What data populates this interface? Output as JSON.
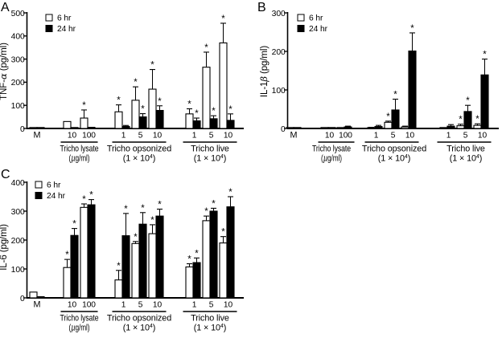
{
  "figure": {
    "background": "#ffffff",
    "bar_fill_6hr": "#ffffff",
    "bar_fill_24hr": "#000000",
    "significance_marker": "*",
    "control_label": "M"
  },
  "chart_data": [
    {
      "type": "bar",
      "panel_letter": "A",
      "ylabel": "TNF-α (pg/ml)",
      "ylim": [
        0,
        500
      ],
      "yticks": [
        0,
        100,
        200,
        300,
        400,
        500
      ],
      "legend": [
        "6 hr",
        "24 hr"
      ],
      "control": {
        "label": "M",
        "values": [
          3,
          3
        ],
        "errors": [
          0,
          0
        ],
        "sig": [
          false,
          false
        ]
      },
      "groups": [
        {
          "name": "Tricho lysate",
          "unit": "(µg/ml)",
          "doses": [
            "10",
            "100"
          ],
          "series": [
            {
              "name": "6 hr",
              "values": [
                30,
                45
              ],
              "errors": [
                0,
                35
              ],
              "sig": [
                false,
                true
              ]
            },
            {
              "name": "24 hr",
              "values": [
                4,
                5
              ],
              "errors": [
                0,
                0
              ],
              "sig": [
                false,
                false
              ]
            }
          ]
        },
        {
          "name": "Tricho opsonized",
          "unit": "(1 × 10⁴)",
          "doses": [
            "1",
            "5",
            "10"
          ],
          "series": [
            {
              "name": "6 hr",
              "values": [
                72,
                122,
                170
              ],
              "errors": [
                30,
                58,
                85
              ],
              "sig": [
                true,
                true,
                true
              ]
            },
            {
              "name": "24 hr",
              "values": [
                9,
                50,
                78
              ],
              "errors": [
                4,
                14,
                20
              ],
              "sig": [
                false,
                true,
                true
              ]
            }
          ]
        },
        {
          "name": "Tricho live",
          "unit": "(1 × 10⁴)",
          "doses": [
            "1",
            "5",
            "10"
          ],
          "series": [
            {
              "name": "6 hr",
              "values": [
                63,
                265,
                370
              ],
              "errors": [
                22,
                65,
                85
              ],
              "sig": [
                true,
                true,
                true
              ]
            },
            {
              "name": "24 hr",
              "values": [
                33,
                42,
                35
              ],
              "errors": [
                12,
                13,
                28
              ],
              "sig": [
                true,
                true,
                true
              ]
            }
          ]
        }
      ]
    },
    {
      "type": "bar",
      "panel_letter": "B",
      "ylabel": "IL-1β (pg/ml)",
      "ylim": [
        0,
        300
      ],
      "yticks": [
        0,
        100,
        200,
        300
      ],
      "legend": [
        "6 hr",
        "24 hr"
      ],
      "control": {
        "label": "M",
        "values": [
          1.5,
          1.5
        ],
        "errors": [
          0,
          0
        ],
        "sig": [
          false,
          false
        ]
      },
      "groups": [
        {
          "name": "Tricho lysate",
          "unit": "(µg/ml)",
          "doses": [
            "10",
            "100"
          ],
          "series": [
            {
              "name": "6 hr",
              "values": [
                1.5,
                1.5
              ],
              "errors": [
                0,
                0
              ],
              "sig": [
                false,
                false
              ]
            },
            {
              "name": "24 hr",
              "values": [
                1.5,
                4
              ],
              "errors": [
                0,
                2
              ],
              "sig": [
                false,
                false
              ]
            }
          ]
        },
        {
          "name": "Tricho opsonized",
          "unit": "(1 × 10⁴)",
          "doses": [
            "1",
            "5",
            "10"
          ],
          "series": [
            {
              "name": "6 hr",
              "values": [
                2,
                16,
                4
              ],
              "errors": [
                1,
                3,
                2
              ],
              "sig": [
                false,
                true,
                false
              ]
            },
            {
              "name": "24 hr",
              "values": [
                5,
                48,
                201
              ],
              "errors": [
                3,
                28,
                47
              ],
              "sig": [
                false,
                true,
                true
              ]
            }
          ]
        },
        {
          "name": "Tricho live",
          "unit": "(1 × 10⁴)",
          "doses": [
            "1",
            "5",
            "10"
          ],
          "series": [
            {
              "name": "6 hr",
              "values": [
                1.5,
                7,
                8
              ],
              "errors": [
                0,
                4,
                4
              ],
              "sig": [
                false,
                true,
                true
              ]
            },
            {
              "name": "24 hr",
              "values": [
                6,
                44,
                139
              ],
              "errors": [
                4,
                16,
                41
              ],
              "sig": [
                false,
                true,
                true
              ]
            }
          ]
        }
      ]
    },
    {
      "type": "bar",
      "panel_letter": "C",
      "ylabel": "IL-6 (pg/ml)",
      "ylim": [
        0,
        400
      ],
      "yticks": [
        0,
        100,
        200,
        300,
        400
      ],
      "legend": [
        "6 hr",
        "24 hr"
      ],
      "control": {
        "label": "M",
        "values": [
          20,
          4
        ],
        "errors": [
          0,
          0
        ],
        "sig": [
          false,
          false
        ]
      },
      "groups": [
        {
          "name": "Tricho lysate",
          "unit": "(µg/ml)",
          "doses": [
            "10",
            "100"
          ],
          "series": [
            {
              "name": "6 hr",
              "values": [
                105,
                313
              ],
              "errors": [
                28,
                12
              ],
              "sig": [
                true,
                true
              ]
            },
            {
              "name": "24 hr",
              "values": [
                216,
                322
              ],
              "errors": [
                24,
                18
              ],
              "sig": [
                true,
                true
              ]
            }
          ]
        },
        {
          "name": "Tricho opsonized",
          "unit": "(1 × 10⁴)",
          "doses": [
            "1",
            "5",
            "10"
          ],
          "series": [
            {
              "name": "6 hr",
              "values": [
                62,
                188,
                222
              ],
              "errors": [
                33,
                7,
                31
              ],
              "sig": [
                true,
                true,
                true
              ]
            },
            {
              "name": "24 hr",
              "values": [
                215,
                255,
                283
              ],
              "errors": [
                77,
                40,
                24
              ],
              "sig": [
                true,
                true,
                true
              ]
            }
          ]
        },
        {
          "name": "Tricho live",
          "unit": "(1 × 10⁴)",
          "doses": [
            "1",
            "5",
            "10"
          ],
          "series": [
            {
              "name": "6 hr",
              "values": [
                107,
                267,
                190
              ],
              "errors": [
                11,
                16,
                22
              ],
              "sig": [
                true,
                true,
                true
              ]
            },
            {
              "name": "24 hr",
              "values": [
                122,
                300,
                315
              ],
              "errors": [
                16,
                10,
                35
              ],
              "sig": [
                true,
                true,
                true
              ]
            }
          ]
        }
      ]
    }
  ]
}
